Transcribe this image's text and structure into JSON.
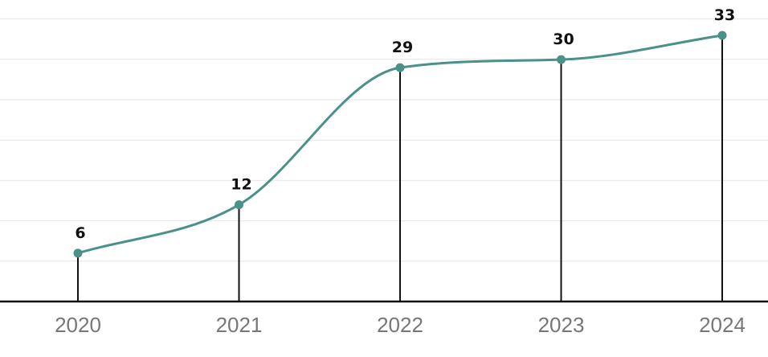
{
  "chart_data": {
    "type": "line",
    "title": "",
    "xlabel": "",
    "ylabel": "",
    "categories": [
      "2020",
      "2021",
      "2022",
      "2023",
      "2024"
    ],
    "series": [
      {
        "values": [
          6,
          12,
          29,
          30,
          33
        ],
        "color": "#4a9189"
      }
    ],
    "data_labels": [
      "6",
      "12",
      "29",
      "30",
      "33"
    ],
    "ylim": [
      0,
      35
    ],
    "grid": true,
    "smooth": true,
    "drop_lines": true,
    "legend": "none"
  }
}
